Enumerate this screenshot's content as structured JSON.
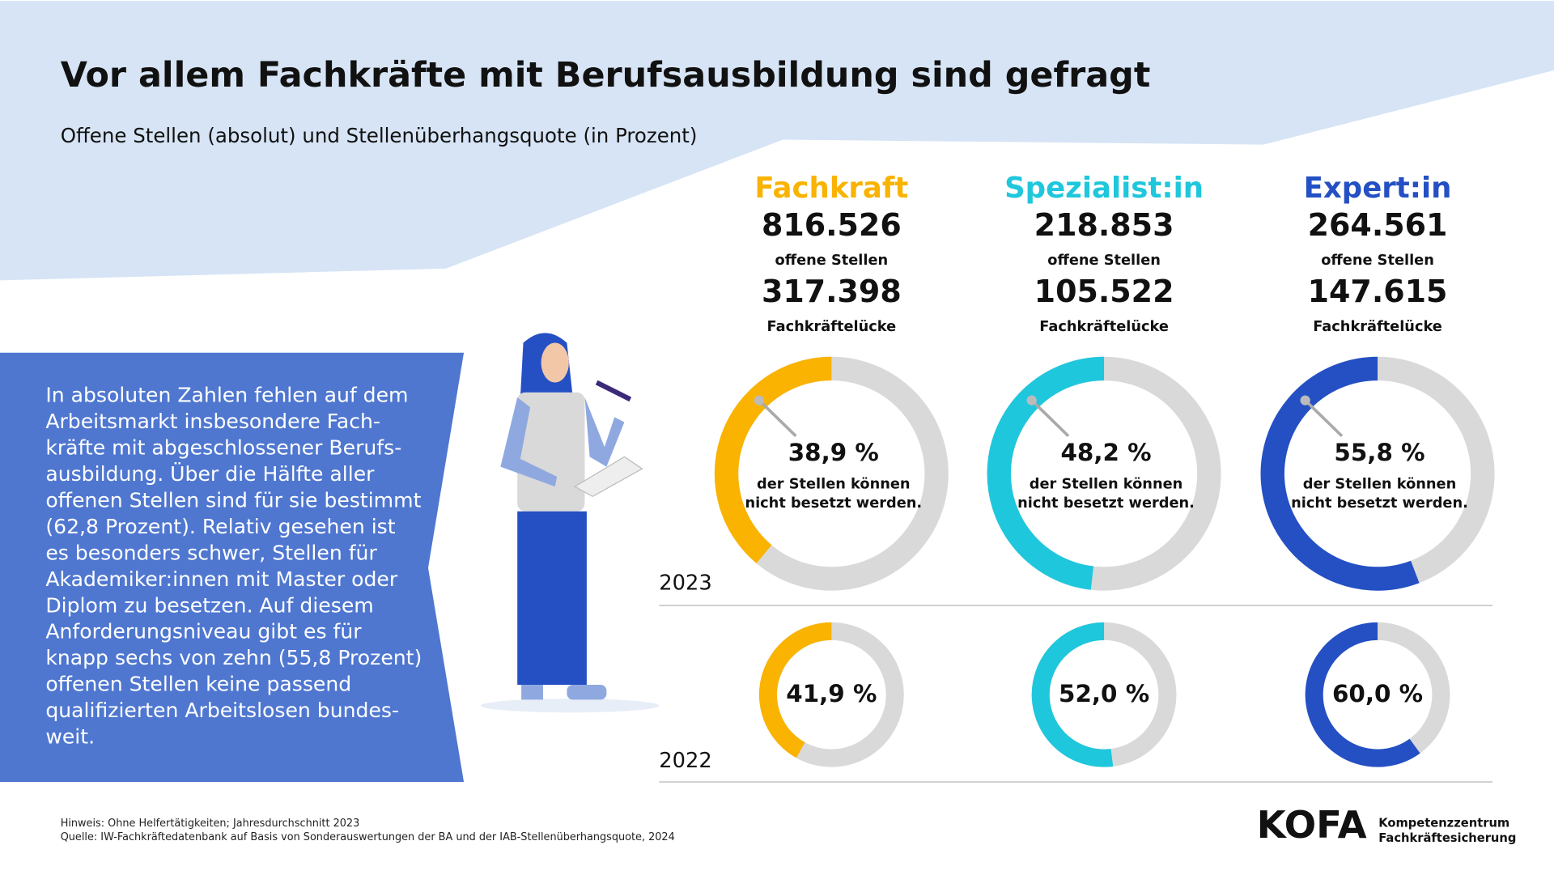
{
  "title": "Vor allem Fachkräfte mit Berufsausbildung sind gefragt",
  "subtitle": "Offene Stellen (absolut) und Stellenüberhangsquote (in Prozent)",
  "text_lines": [
    "In absoluten Zahlen fehlen auf dem",
    "Arbeitsmarkt insbesondere Fach-",
    "kräfte mit abgeschlossener Berufs-",
    "ausbildung. Über die Hälfte aller",
    "offenen Stellen sind für sie bestimmt",
    "(62,8 Prozent). Relativ gesehen ist",
    "es besonders schwer, Stellen für",
    "Akademiker:innen mit Master oder",
    "Diplom zu besetzen. Auf diesem",
    "Anforderungsniveau gibt es für",
    "knapp sechs von zehn (55,8 Prozent)",
    "offenen Stellen keine passend",
    "qualifizierten Arbeitslosen bundes-",
    "weit."
  ],
  "open_label": "offene Stellen",
  "gap_label": "Fachkräftelücke",
  "groups": [
    {
      "name": "Fachkraft",
      "color": "#f9b300",
      "open": "816.526",
      "gap": "317.398"
    },
    {
      "name": "Spezialist:in",
      "color": "#1fc7dc",
      "open": "218.853",
      "gap": "105.522"
    },
    {
      "name": "Expert:in",
      "color": "#2450c4",
      "open": "264.561",
      "gap": "147.615"
    }
  ],
  "chart_data": [
    {
      "type": "donut",
      "label": "2023",
      "values": [
        38.9,
        48.2,
        55.8
      ],
      "value_labels": [
        "38,9 %",
        "48,2 %",
        "55,8 %"
      ],
      "caption": [
        "der Stellen können",
        "nicht besetzt werden."
      ]
    },
    {
      "type": "donut",
      "label": "2022",
      "values": [
        41.9,
        52.0,
        60.0
      ],
      "value_labels": [
        "41,9 %",
        "52,0 %",
        "60,0 %"
      ]
    }
  ],
  "notes": [
    "Hinweis: Ohne Helfertätigkeiten; Jahresdurchschnitt 2023",
    "Quelle: IW-Fachkräftedatenbank auf Basis von Sonderauswertungen der BA und der IAB-Stellenüberhangsquote, 2024"
  ],
  "logo": {
    "name": "KOFA",
    "lines": [
      "Kompetenzzentrum",
      "Fachkräftesicherung"
    ]
  }
}
